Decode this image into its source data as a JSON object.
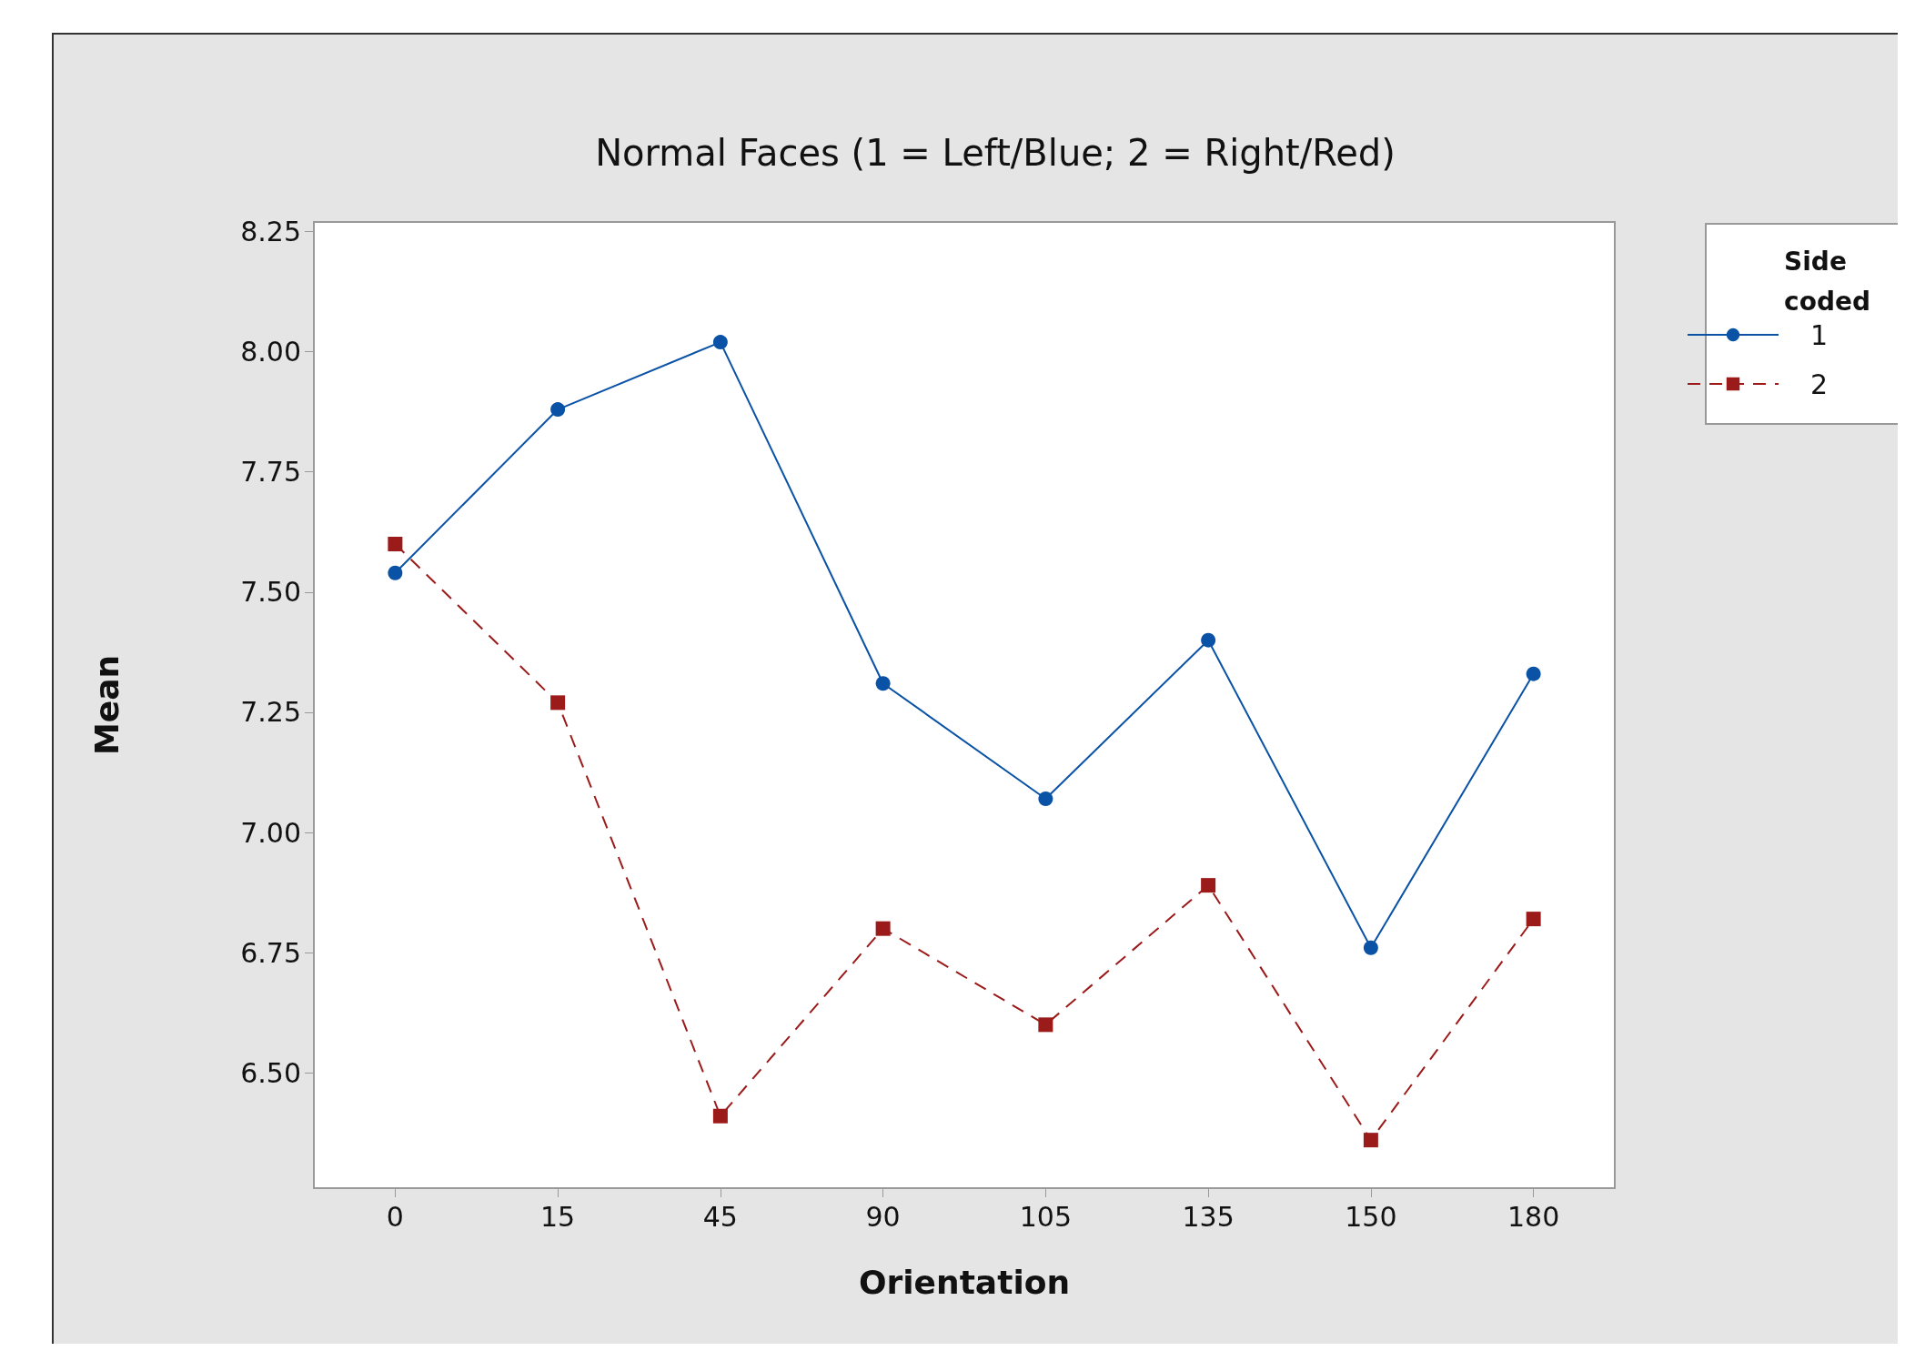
{
  "chart_data": {
    "type": "line",
    "title": "Normal Faces (1 = Left/Blue; 2 = Right/Red)",
    "xlabel": "Orientation",
    "ylabel": "Mean",
    "legend_title": "Side\ncoded",
    "categories": [
      "0",
      "15",
      "45",
      "90",
      "105",
      "135",
      "150",
      "180"
    ],
    "series": [
      {
        "name": "1",
        "color": "#0a52a5",
        "marker": "circle",
        "line_style": "solid",
        "values": [
          7.54,
          7.88,
          8.02,
          7.31,
          7.07,
          7.4,
          6.76,
          7.33
        ]
      },
      {
        "name": "2",
        "color": "#9b1a1a",
        "marker": "square",
        "line_style": "dashed",
        "values": [
          7.6,
          7.27,
          6.41,
          6.8,
          6.6,
          6.89,
          6.36,
          6.82
        ]
      }
    ],
    "ylim": [
      6.26,
      8.27
    ],
    "yticks": [
      {
        "value": 6.5,
        "label": "6.50"
      },
      6.75,
      {
        "value": 7,
        "label": "7.00"
      },
      7.25,
      {
        "value": 7.5,
        "label": "7.50"
      },
      7.75,
      {
        "value": 8,
        "label": "8.00"
      },
      8.25
    ],
    "grid": false,
    "legend": "top right"
  }
}
